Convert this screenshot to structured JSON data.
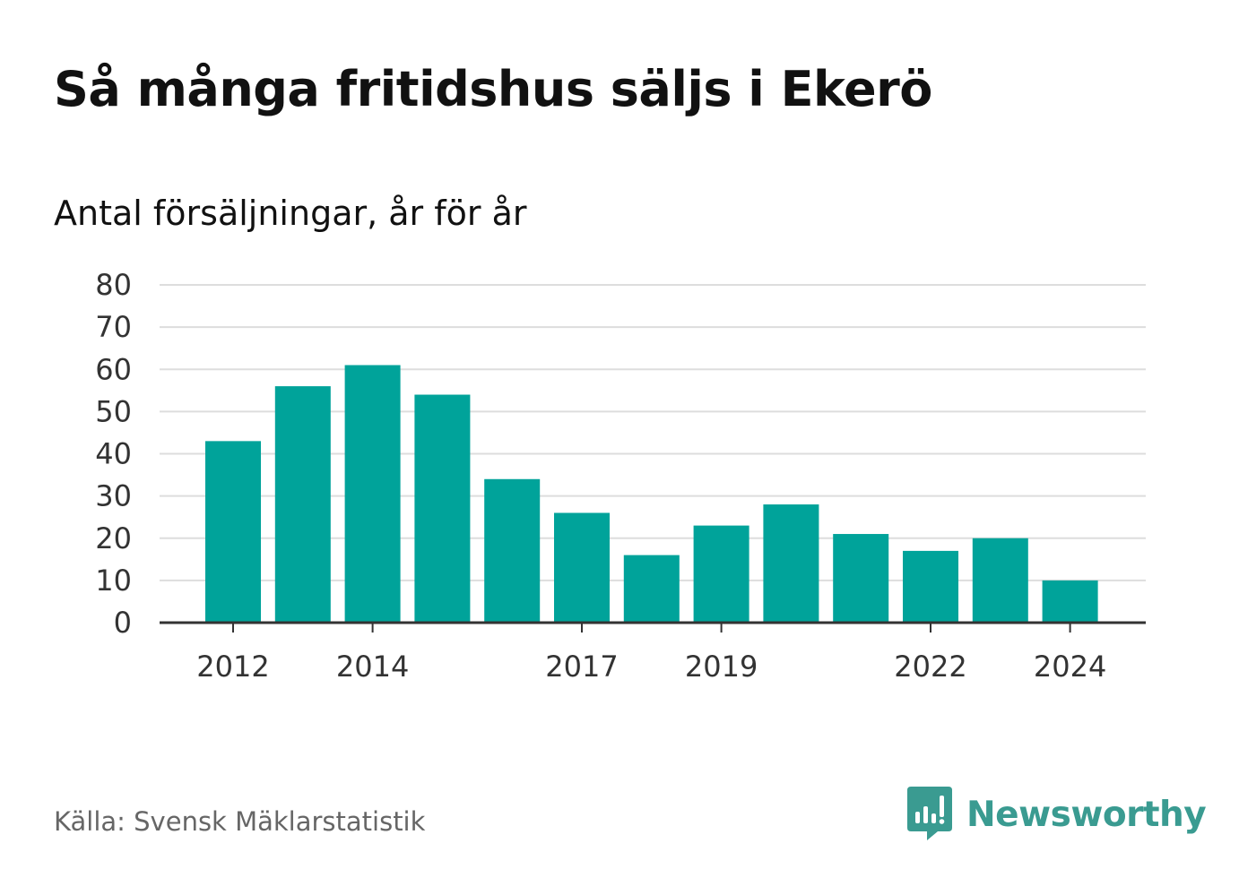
{
  "title": "Så många fritidshus säljs i Ekerö",
  "subtitle": "Antal försäljningar, år för år",
  "source": "Källa: Svensk Mäklarstatistik",
  "brand": {
    "name": "Newsworthy",
    "icon": "newsworthy-logo-icon",
    "color": "#3a9b91"
  },
  "colors": {
    "bar": "#00a39a",
    "grid": "#dddddd",
    "axis": "#333333",
    "text": "#333333"
  },
  "chart_data": {
    "type": "bar",
    "categories": [
      "2012",
      "2013",
      "2014",
      "2015",
      "2016",
      "2017",
      "2018",
      "2019",
      "2020",
      "2021",
      "2022",
      "2023",
      "2024"
    ],
    "x_tick_labels": [
      "2012",
      "2014",
      "2017",
      "2019",
      "2022",
      "2024"
    ],
    "values": [
      43,
      56,
      61,
      54,
      34,
      26,
      16,
      23,
      28,
      21,
      17,
      20,
      10
    ],
    "y_ticks": [
      0,
      10,
      20,
      30,
      40,
      50,
      60,
      70,
      80
    ],
    "ylim": [
      0,
      80
    ],
    "xlabel": "",
    "ylabel": "",
    "grid": true
  }
}
